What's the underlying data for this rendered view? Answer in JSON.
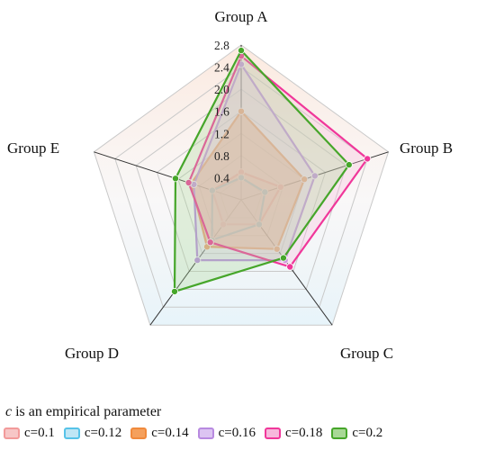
{
  "chart_data": {
    "type": "radar",
    "title": "",
    "axes": [
      "Group A",
      "Group B",
      "Group C",
      "Group D",
      "Group E"
    ],
    "radial_range": [
      0,
      2.8
    ],
    "ticks": [
      0.4,
      0.8,
      1.2,
      1.6,
      2.0,
      2.4,
      2.8
    ],
    "tick_labels": [
      "0.4",
      "0.8",
      "1.2",
      "1.6",
      "2.0",
      "2.4",
      "2.8"
    ],
    "grid": true,
    "legend_title_param": "c",
    "legend_title_rest": " is an empirical parameter",
    "legend_position": "bottom",
    "series": [
      {
        "name": "c=0.1",
        "values": [
          0.5,
          0.75,
          0.55,
          0.55,
          0.55
        ],
        "stroke": "#f29a9a",
        "fill": "#f7c6c6",
        "fill_opacity": 0.35
      },
      {
        "name": "c=0.12",
        "values": [
          0.4,
          0.45,
          0.55,
          0.9,
          0.55
        ],
        "stroke": "#56c3e8",
        "fill": "#bfe6f5",
        "fill_opacity": 0.35
      },
      {
        "name": "c=0.14",
        "values": [
          1.6,
          1.2,
          1.1,
          1.05,
          0.95
        ],
        "stroke": "#f08a3c",
        "fill": "#f5a05c",
        "fill_opacity": 0.55
      },
      {
        "name": "c=0.16",
        "values": [
          2.45,
          1.4,
          1.35,
          1.35,
          0.9
        ],
        "stroke": "#b88ae0",
        "fill": "#dcc4f2",
        "fill_opacity": 0.35
      },
      {
        "name": "c=0.18",
        "values": [
          2.6,
          2.4,
          1.5,
          0.95,
          1.0
        ],
        "stroke": "#f0379a",
        "fill": "#f7b8dc",
        "fill_opacity": 0.3
      },
      {
        "name": "c=0.2",
        "values": [
          2.7,
          2.05,
          1.3,
          2.05,
          1.25
        ],
        "stroke": "#46a62a",
        "fill": "#a8d896",
        "fill_opacity": 0.3
      }
    ]
  }
}
